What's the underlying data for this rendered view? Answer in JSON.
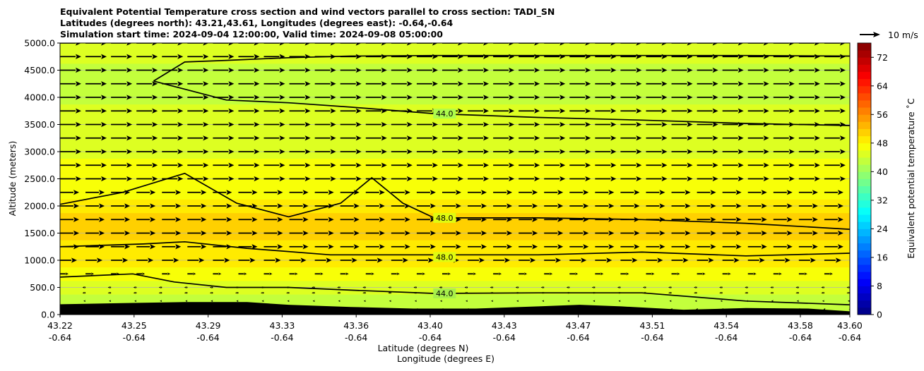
{
  "chart_data": {
    "type": "contour cross-section with wind vectors",
    "title": [
      "Equivalent Potential Temperature cross section and wind vectors parallel to cross section: TADI_SN",
      "Latitudes (degrees north): 43.21,43.61, Longitudes (degrees east): -0.64,-0.64",
      "Simulation start time: 2024-09-04 12:00:00, Valid time: 2024-09-08 05:00:00"
    ],
    "ylabel": "Altitude (meters)",
    "xlabel_lat": "Latitude (degrees N)",
    "xlabel_lon": "Longitude (degrees E)",
    "ylim": [
      0,
      5000
    ],
    "y_ticks": [
      "0.0",
      "500.0",
      "1000.0",
      "1500.0",
      "2000.0",
      "2500.0",
      "3000.0",
      "3500.0",
      "4000.0",
      "4500.0",
      "5000.0"
    ],
    "y_tick_values": [
      0,
      500,
      1000,
      1500,
      2000,
      2500,
      3000,
      3500,
      4000,
      4500,
      5000
    ],
    "x_lat_ticks": [
      "43.22",
      "43.25",
      "43.29",
      "43.33",
      "43.36",
      "43.40",
      "43.43",
      "43.47",
      "43.51",
      "43.54",
      "43.58",
      "43.60"
    ],
    "x_lon_ticks": [
      "-0.64",
      "-0.64",
      "-0.64",
      "-0.64",
      "-0.64",
      "-0.64",
      "-0.64",
      "-0.64",
      "-0.64",
      "-0.64",
      "-0.64",
      "-0.64"
    ],
    "grid": "horizontal",
    "colorbar": {
      "label": "Equivalent potential temperature ˚C",
      "range": [
        0,
        76
      ],
      "ticks": [
        "0",
        "8",
        "16",
        "24",
        "32",
        "40",
        "48",
        "56",
        "64",
        "72"
      ],
      "tick_values": [
        0,
        8,
        16,
        24,
        32,
        40,
        48,
        56,
        64,
        72
      ],
      "colormap": "jet"
    },
    "wind_key": {
      "label": "10 m/s",
      "speed": 10
    },
    "contour_labels": [
      "44.0",
      "48.0",
      "48.0",
      "44.0"
    ],
    "contours": [
      {
        "label": "44.0",
        "lat": [
          43.22,
          43.255,
          43.275,
          43.3,
          43.33,
          43.36,
          43.4,
          43.45,
          43.5,
          43.55,
          43.6
        ],
        "alt": [
          690,
          750,
          600,
          500,
          500,
          450,
          390,
          400,
          400,
          250,
          180
        ]
      },
      {
        "label": "48.0",
        "lat": [
          43.22,
          43.26,
          43.28,
          43.31,
          43.35,
          43.4,
          43.45,
          43.5,
          43.55,
          43.6
        ],
        "alt": [
          1250,
          1300,
          1340,
          1220,
          1100,
          1100,
          1100,
          1150,
          1080,
          1130
        ]
      },
      {
        "label": "48.0",
        "lat": [
          43.22,
          43.25,
          43.28,
          43.305,
          43.33,
          43.355,
          43.37,
          43.385,
          43.4,
          43.45,
          43.5,
          43.55,
          43.6
        ],
        "alt": [
          2030,
          2250,
          2600,
          2050,
          1800,
          2050,
          2520,
          2050,
          1780,
          1780,
          1750,
          1680,
          1570
        ]
      },
      {
        "label": "44.0",
        "lat": [
          43.265,
          43.28,
          43.3,
          43.33,
          43.36,
          43.4,
          43.45,
          43.5,
          43.55,
          43.6
        ],
        "alt": [
          4300,
          4650,
          4680,
          4730,
          4760,
          4770,
          4770,
          4770,
          4770,
          4760
        ]
      },
      {
        "label": "44.0",
        "lat": [
          43.265,
          43.3,
          43.33,
          43.36,
          43.4,
          43.45,
          43.5,
          43.55,
          43.6
        ],
        "alt": [
          4300,
          3950,
          3900,
          3820,
          3700,
          3630,
          3580,
          3520,
          3480
        ]
      }
    ],
    "theta_e_profile": {
      "alt": [
        0,
        250,
        500,
        750,
        1000,
        1250,
        1500,
        1750,
        2000,
        2250,
        2500,
        2750,
        3000,
        3250,
        3500,
        3750,
        4000,
        4250,
        4500,
        4750,
        5000
      ],
      "value": [
        42,
        43.5,
        45,
        47,
        48.5,
        49.5,
        50,
        50,
        49,
        47.5,
        46.5,
        46,
        45.5,
        45,
        44.5,
        44,
        43.5,
        43.5,
        43.5,
        44,
        44
      ]
    },
    "terrain": {
      "lat": [
        43.22,
        43.25,
        43.28,
        43.31,
        43.33,
        43.36,
        43.39,
        43.42,
        43.45,
        43.47,
        43.49,
        43.52,
        43.55,
        43.58,
        43.6
      ],
      "alt": [
        190,
        210,
        230,
        230,
        180,
        140,
        110,
        110,
        150,
        180,
        150,
        90,
        120,
        110,
        60
      ]
    },
    "wind_vectors": {
      "alt": [
        100,
        250,
        400,
        500,
        750,
        1000,
        1250,
        1500,
        1750,
        2000,
        2250,
        2500,
        2750,
        3000,
        3250,
        3500,
        3750,
        4000,
        4250,
        4500,
        4750,
        5000
      ],
      "u": [
        -0.5,
        -1,
        -1.5,
        -1.5,
        4,
        8,
        9,
        9,
        9,
        9,
        9,
        10,
        10,
        10,
        10,
        10,
        10,
        10,
        10,
        10,
        10,
        10
      ],
      "lat_start": 43.22,
      "lat_end": 43.6,
      "count": 32
    }
  }
}
